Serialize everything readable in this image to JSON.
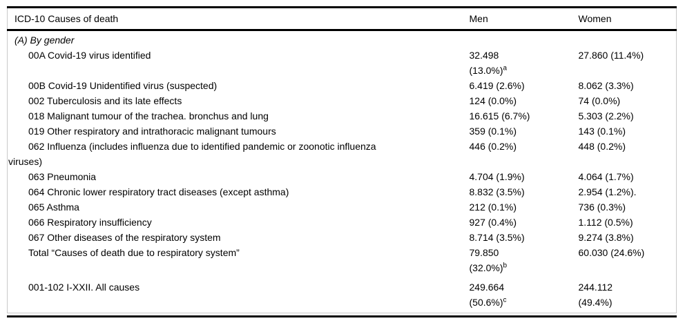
{
  "table": {
    "columns": [
      "ICD-10 Causes of death",
      "Men",
      "Women"
    ],
    "section_label": "(A) By gender",
    "rule_color": "#000000",
    "grid_color": "#c9c9c9",
    "footnote_markers": [
      "a",
      "b",
      "c"
    ],
    "rows": [
      {
        "cause_lines": [
          "00A Covid-19 virus identified"
        ],
        "men_lines": [
          {
            "text": "32.498"
          },
          {
            "text": "(13.0%)",
            "sup": "a"
          }
        ],
        "women_lines": [
          {
            "text": "27.860 (11.4%)"
          }
        ]
      },
      {
        "cause_lines": [
          "00B Covid-19 Unidentified virus (suspected)"
        ],
        "men_lines": [
          {
            "text": "6.419 (2.6%)"
          }
        ],
        "women_lines": [
          {
            "text": "8.062 (3.3%)"
          }
        ]
      },
      {
        "cause_lines": [
          "002 Tuberculosis and its late effects"
        ],
        "men_lines": [
          {
            "text": "124 (0.0%)"
          }
        ],
        "women_lines": [
          {
            "text": "74 (0.0%)"
          }
        ]
      },
      {
        "cause_lines": [
          "018 Malignant tumour of the trachea. bronchus and lung"
        ],
        "men_lines": [
          {
            "text": "16.615 (6.7%)"
          }
        ],
        "women_lines": [
          {
            "text": "5.303 (2.2%)"
          }
        ]
      },
      {
        "cause_lines": [
          "019 Other respiratory and intrathoracic malignant tumours"
        ],
        "men_lines": [
          {
            "text": "359 (0.1%)"
          }
        ],
        "women_lines": [
          {
            "text": "143 (0.1%)"
          }
        ]
      },
      {
        "cause_lines": [
          "062 Influenza (includes influenza due to identified pandemic or zoonotic influenza",
          "viruses)"
        ],
        "men_lines": [
          {
            "text": "446 (0.2%)"
          }
        ],
        "women_lines": [
          {
            "text": "448 (0.2%)"
          }
        ]
      },
      {
        "cause_lines": [
          "063 Pneumonia"
        ],
        "men_lines": [
          {
            "text": "4.704 (1.9%)"
          }
        ],
        "women_lines": [
          {
            "text": "4.064 (1.7%)"
          }
        ]
      },
      {
        "cause_lines": [
          "064 Chronic lower respiratory tract diseases (except asthma)"
        ],
        "men_lines": [
          {
            "text": "8.832 (3.5%)"
          }
        ],
        "women_lines": [
          {
            "text": "2.954 (1.2%)."
          }
        ]
      },
      {
        "cause_lines": [
          "065 Asthma"
        ],
        "men_lines": [
          {
            "text": "212 (0.1%)"
          }
        ],
        "women_lines": [
          {
            "text": "736 (0.3%)"
          }
        ]
      },
      {
        "cause_lines": [
          "066 Respiratory insufficiency"
        ],
        "men_lines": [
          {
            "text": "927 (0.4%)"
          }
        ],
        "women_lines": [
          {
            "text": "1.112 (0.5%)"
          }
        ]
      },
      {
        "cause_lines": [
          "067 Other diseases of the respiratory system"
        ],
        "men_lines": [
          {
            "text": "8.714 (3.5%)"
          }
        ],
        "women_lines": [
          {
            "text": "9.274 (3.8%)"
          }
        ]
      },
      {
        "cause_lines": [
          "Total “Causes of death due to respiratory system”"
        ],
        "men_lines": [
          {
            "text": "79.850"
          },
          {
            "text": "(32.0%)",
            "sup": "b"
          }
        ],
        "women_lines": [
          {
            "text": "60.030 (24.6%)"
          }
        ]
      },
      {
        "cause_lines": [
          "001-102 I-XXII. All causes"
        ],
        "men_lines": [
          {
            "text": "249.664"
          },
          {
            "text": "(50.6%)",
            "sup": "c"
          }
        ],
        "women_lines": [
          {
            "text": "244.112"
          },
          {
            "text": "(49.4%)"
          }
        ]
      }
    ]
  }
}
